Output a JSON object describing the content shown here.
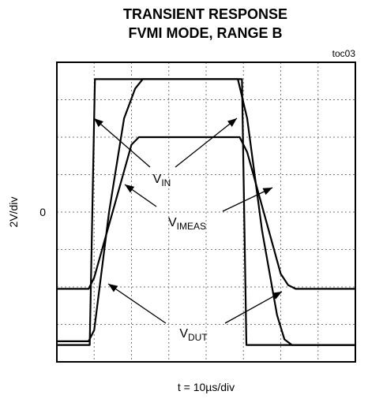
{
  "chart_data": {
    "type": "line",
    "title": [
      "TRANSIENT RESPONSE",
      "FVMI MODE, RANGE B"
    ],
    "subtitle": "toc03",
    "ylabel": "2V/div",
    "xlabel": "t = 10µs/div",
    "xlim": [
      0,
      80
    ],
    "ylim": [
      -8,
      8
    ],
    "xticks": [
      {
        "value": 0,
        "label": null
      },
      {
        "value": 10,
        "label": null
      },
      {
        "value": 20,
        "label": null
      },
      {
        "value": 30,
        "label": null
      },
      {
        "value": 40,
        "label": null
      },
      {
        "value": 50,
        "label": null
      },
      {
        "value": 60,
        "label": null
      },
      {
        "value": 70,
        "label": null
      },
      {
        "value": 80,
        "label": null
      }
    ],
    "yticks": [
      {
        "value": -8,
        "label": null
      },
      {
        "value": -6,
        "label": null
      },
      {
        "value": -4,
        "label": null
      },
      {
        "value": -2,
        "label": null
      },
      0,
      {
        "value": 2,
        "label": null
      },
      {
        "value": 4,
        "label": null
      },
      {
        "value": 6,
        "label": null
      },
      {
        "value": 8,
        "label": null
      }
    ],
    "grid": true,
    "series": [
      {
        "name": "IN",
        "color": "#000000",
        "x": [
          0,
          8.8,
          10.2,
          49.6,
          50.8,
          80
        ],
        "values": [
          -7.1,
          -7.1,
          7.1,
          7.1,
          -7.1,
          -7.1
        ]
      },
      {
        "name": "DUT",
        "color": "#000000",
        "x": [
          0,
          8.5,
          10,
          14,
          18,
          21,
          23,
          48.5,
          51,
          55,
          59,
          61,
          63,
          80
        ],
        "values": [
          -6.9,
          -6.9,
          -6.3,
          0,
          5,
          6.6,
          7.1,
          7.1,
          5,
          -1,
          -5.5,
          -6.8,
          -7.1,
          -7.1
        ]
      },
      {
        "name": "IMEAS",
        "color": "#000000",
        "x": [
          0,
          8.5,
          10,
          20,
          22,
          49,
          51,
          60,
          62,
          64,
          80
        ],
        "values": [
          -4.1,
          -4.1,
          -3.5,
          3.6,
          4.0,
          4.0,
          3.2,
          -3.3,
          -3.9,
          -4.1,
          -4.1
        ]
      }
    ],
    "annotations": [
      {
        "text": "V",
        "sub": "IN"
      },
      {
        "text": "V",
        "sub": "IMEAS"
      },
      {
        "text": "V",
        "sub": "DUT"
      }
    ]
  }
}
